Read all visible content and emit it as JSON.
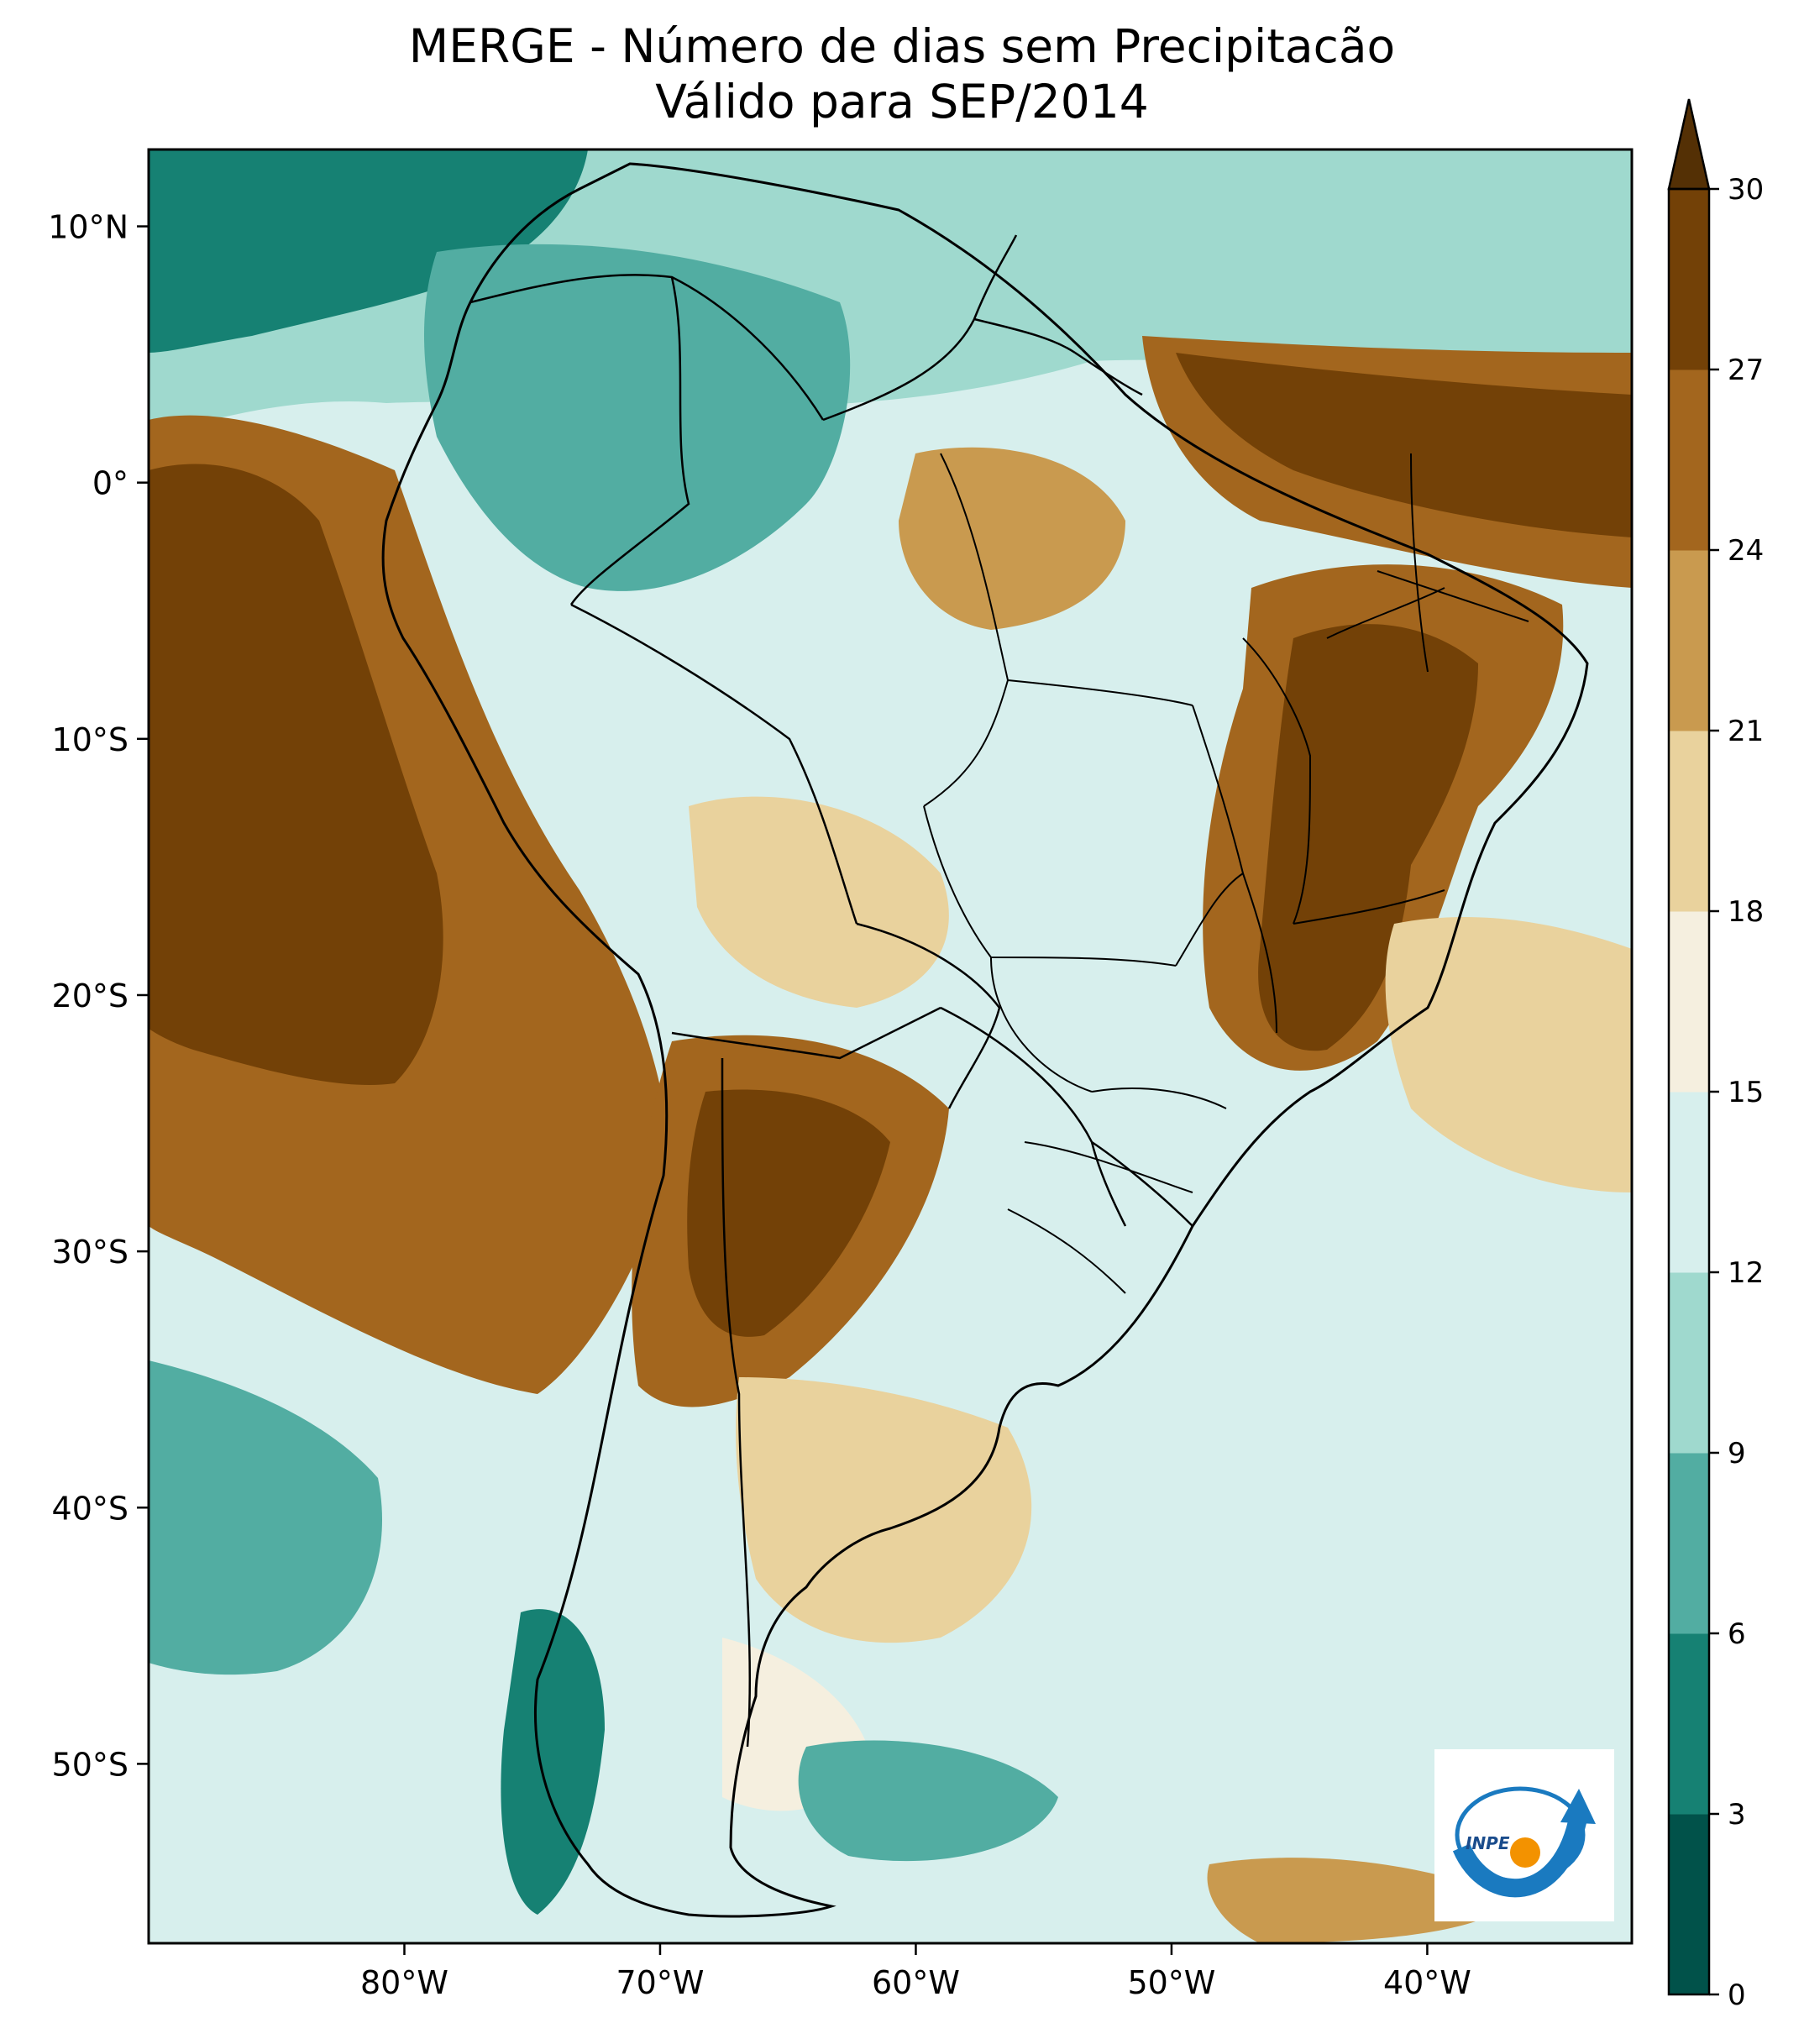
{
  "title": {
    "line1": "MERGE - Número de dias sem Precipitacão",
    "line2": "Válido para SEP/2014"
  },
  "map": {
    "lat_ticks": [
      {
        "value": 10,
        "label": "10°N"
      },
      {
        "value": 0,
        "label": "0°"
      },
      {
        "value": -10,
        "label": "10°S"
      },
      {
        "value": -20,
        "label": "20°S"
      },
      {
        "value": -30,
        "label": "30°S"
      },
      {
        "value": -40,
        "label": "40°S"
      },
      {
        "value": -50,
        "label": "50°S"
      }
    ],
    "lon_ticks": [
      {
        "value": -80,
        "label": "80°W"
      },
      {
        "value": -70,
        "label": "70°W"
      },
      {
        "value": -60,
        "label": "60°W"
      },
      {
        "value": -50,
        "label": "50°W"
      },
      {
        "value": -40,
        "label": "40°W"
      }
    ],
    "lon_range": [
      -90,
      -32
    ],
    "lat_range": [
      -57,
      13
    ],
    "logo_text": "INPE"
  },
  "colorbar": {
    "ticks": [
      "0",
      "3",
      "6",
      "9",
      "12",
      "15",
      "18",
      "21",
      "24",
      "27",
      "30"
    ],
    "levels": [
      0,
      3,
      6,
      9,
      12,
      15,
      18,
      21,
      24,
      27,
      30
    ],
    "colors": [
      "#01524a",
      "#168173",
      "#52ada2",
      "#9fd9ce",
      "#d7efed",
      "#f5efdf",
      "#e9d29d",
      "#c99a4f",
      "#a3661e",
      "#734107"
    ],
    "extend_color": "#543005",
    "extend": "max"
  }
}
